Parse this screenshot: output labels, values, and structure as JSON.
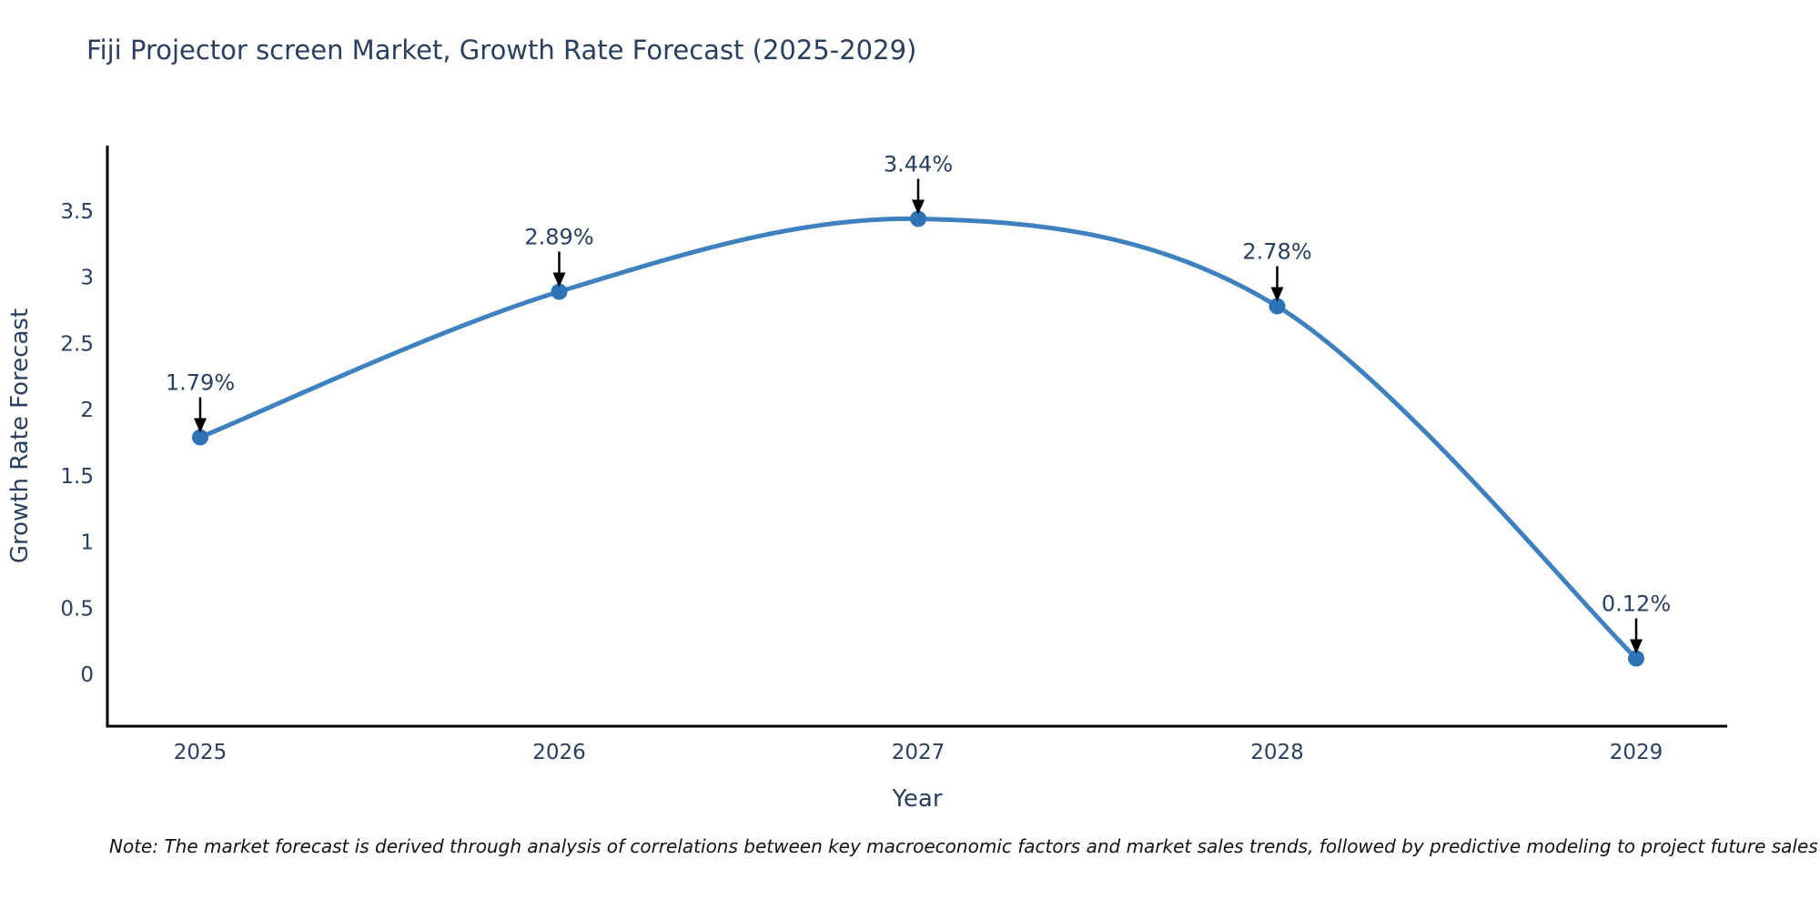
{
  "title": "Fiji Projector screen Market, Growth Rate Forecast (2025-2029)",
  "note": "Note: The market forecast is derived through analysis of correlations between key macroeconomic factors and market sales trends, followed by predictive modeling to project future sales",
  "chart_data": {
    "type": "line",
    "line_shape": "spline",
    "title": "Fiji Projector screen Market, Growth Rate Forecast (2025-2029)",
    "xlabel": "Year",
    "ylabel": "Growth Rate Forecast",
    "x": [
      "2025",
      "2026",
      "2027",
      "2028",
      "2029"
    ],
    "values": [
      1.79,
      2.89,
      3.44,
      2.78,
      0.12
    ],
    "point_labels": [
      "1.79%",
      "2.89%",
      "3.44%",
      "2.78%",
      "0.12%"
    ],
    "y_ticks": [
      "0",
      "0.5",
      "1",
      "1.5",
      "2",
      "2.5",
      "3",
      "3.5"
    ],
    "y_tick_values": [
      0,
      0.5,
      1,
      1.5,
      2,
      2.5,
      3,
      3.5
    ],
    "ylim": [
      -0.4,
      4.0
    ],
    "grid": false,
    "legend_position": "none",
    "colors": {
      "line": "#3f80bf",
      "marker": "#2e74b5",
      "axis": "#000000",
      "text": "#2a3f5f",
      "annotation_text": "#2a3f5f",
      "annotation_arrow": "#000000",
      "background": "#ffffff"
    }
  }
}
